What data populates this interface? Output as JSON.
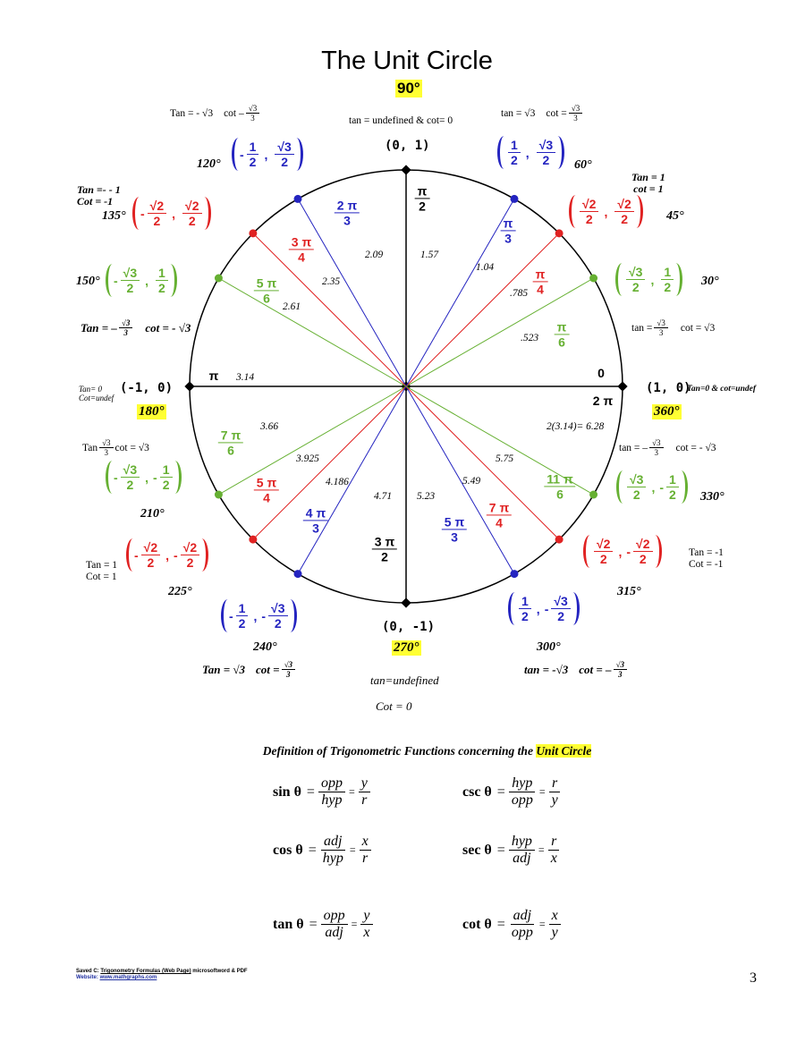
{
  "title": "The Unit Circle",
  "colors": {
    "green": "#66b032",
    "red": "#e02222",
    "blue": "#2424c0",
    "black": "#000000",
    "highlight": "#ffff33"
  },
  "axes": {
    "deg90": "90°",
    "deg180": "180°",
    "deg270": "270°",
    "deg360": "360°",
    "coord_top": "(0, 1)",
    "coord_left": "(-1, 0)",
    "coord_right": "(1, 0)",
    "coord_bottom": "(0, -1)"
  },
  "points": [
    {
      "deg": 30,
      "angle": "30°",
      "color": "green",
      "x": {
        "s": "",
        "n": "√3",
        "d": "2"
      },
      "y": {
        "s": "",
        "n": "1",
        "d": "2"
      }
    },
    {
      "deg": 45,
      "angle": "45°",
      "color": "red",
      "x": {
        "s": "",
        "n": "√2",
        "d": "2"
      },
      "y": {
        "s": "",
        "n": "√2",
        "d": "2"
      }
    },
    {
      "deg": 60,
      "angle": "60°",
      "color": "blue",
      "x": {
        "s": "",
        "n": "1",
        "d": "2"
      },
      "y": {
        "s": "",
        "n": "√3",
        "d": "2"
      }
    },
    {
      "deg": 120,
      "angle": "120°",
      "color": "blue",
      "x": {
        "s": "-",
        "n": "1",
        "d": "2"
      },
      "y": {
        "s": "",
        "n": "√3",
        "d": "2"
      }
    },
    {
      "deg": 135,
      "angle": "135°",
      "color": "red",
      "x": {
        "s": "-",
        "n": "√2",
        "d": "2"
      },
      "y": {
        "s": "",
        "n": "√2",
        "d": "2"
      }
    },
    {
      "deg": 150,
      "angle": "150°",
      "color": "green",
      "x": {
        "s": "-",
        "n": "√3",
        "d": "2"
      },
      "y": {
        "s": "",
        "n": "1",
        "d": "2"
      }
    },
    {
      "deg": 210,
      "angle": "210°",
      "color": "green",
      "x": {
        "s": "-",
        "n": "√3",
        "d": "2"
      },
      "y": {
        "s": "-",
        "n": "1",
        "d": "2"
      }
    },
    {
      "deg": 225,
      "angle": "225°",
      "color": "red",
      "x": {
        "s": "-",
        "n": "√2",
        "d": "2"
      },
      "y": {
        "s": "-",
        "n": "√2",
        "d": "2"
      }
    },
    {
      "deg": 240,
      "angle": "240°",
      "color": "blue",
      "x": {
        "s": "-",
        "n": "1",
        "d": "2"
      },
      "y": {
        "s": "-",
        "n": "√3",
        "d": "2"
      }
    },
    {
      "deg": 300,
      "angle": "300°",
      "color": "blue",
      "x": {
        "s": "",
        "n": "1",
        "d": "2"
      },
      "y": {
        "s": "-",
        "n": "√3",
        "d": "2"
      }
    },
    {
      "deg": 315,
      "angle": "315°",
      "color": "red",
      "x": {
        "s": "",
        "n": "√2",
        "d": "2"
      },
      "y": {
        "s": "-",
        "n": "√2",
        "d": "2"
      }
    },
    {
      "deg": 330,
      "angle": "330°",
      "color": "green",
      "x": {
        "s": "",
        "n": "√3",
        "d": "2"
      },
      "y": {
        "s": "-",
        "n": "1",
        "d": "2"
      }
    }
  ],
  "radians": [
    {
      "n": "π",
      "d": "2",
      "color": "black"
    },
    {
      "n": "π",
      "d": "3",
      "color": "blue"
    },
    {
      "n": "π",
      "d": "4",
      "color": "red"
    },
    {
      "n": "π",
      "d": "6",
      "color": "green"
    },
    {
      "n": "0",
      "d": "",
      "color": "black"
    },
    {
      "n": "2 π",
      "d": "",
      "color": "black"
    },
    {
      "n": "2 π",
      "d": "3",
      "color": "blue"
    },
    {
      "n": "3 π",
      "d": "4",
      "color": "red"
    },
    {
      "n": "5 π",
      "d": "6",
      "color": "green"
    },
    {
      "n": "π",
      "d": "",
      "color": "black"
    },
    {
      "n": "7 π",
      "d": "6",
      "color": "green"
    },
    {
      "n": "5 π",
      "d": "4",
      "color": "red"
    },
    {
      "n": "4 π",
      "d": "3",
      "color": "blue"
    },
    {
      "n": "3 π",
      "d": "2",
      "color": "black"
    },
    {
      "n": "5 π",
      "d": "3",
      "color": "blue"
    },
    {
      "n": "7 π",
      "d": "4",
      "color": "red"
    },
    {
      "n": "11 π",
      "d": "6",
      "color": "green"
    }
  ],
  "decimals": [
    "1.57",
    "1.04",
    ".785",
    ".523",
    "2.09",
    "2.35",
    "2.61",
    "3.14",
    "3.66",
    "3.925",
    "4.186",
    "4.71",
    "5.23",
    "5.49",
    "5.75",
    "2(3.14)= 6.28"
  ],
  "notes": [
    {
      "style": "",
      "parts": [
        "Tan = - √3",
        {
          "gap": 1
        },
        "cot  –",
        {
          "n": "√3",
          "d": "3"
        }
      ]
    },
    {
      "style": "",
      "parts": [
        "tan = undefined  & cot= 0"
      ]
    },
    {
      "style": "",
      "parts": [
        "tan = √3",
        {
          "gap": 1
        },
        "cot =",
        {
          "n": "√3",
          "d": "3"
        }
      ]
    },
    {
      "style": "bi",
      "parts": [
        "Tan = – ",
        {
          "n": "√3",
          "d": "3"
        },
        {
          "gap": 1
        },
        "cot = - √3"
      ]
    },
    {
      "style": "",
      "parts": [
        "tan =",
        {
          "n": "√3",
          "d": "3"
        },
        {
          "gap": 1
        },
        "cot = √3"
      ]
    },
    {
      "style": "",
      "parts": [
        "Tan",
        {
          "n": "√3",
          "d": "3"
        },
        "cot = √3"
      ]
    },
    {
      "style": "",
      "parts": [
        "tan =  –",
        {
          "n": "√3",
          "d": "3"
        },
        {
          "gap": 1
        },
        "cot = - √3"
      ]
    },
    {
      "style": "bi",
      "parts": [
        "Tan = √3",
        {
          "gap": 1
        },
        "cot =",
        {
          "n": "√3",
          "d": "3"
        }
      ]
    },
    {
      "style": "bi",
      "parts": [
        "tan = -√3",
        {
          "gap": 1
        },
        "cot = –",
        {
          "n": "√3",
          "d": "3"
        }
      ]
    },
    {
      "style": "small",
      "parts": [
        "Tan=0 & cot=undef"
      ]
    }
  ],
  "multi_notes": [
    {
      "lines": [
        "Tan =- - 1",
        "Cot = -1"
      ]
    },
    {
      "lines": [
        "Tan = 1",
        "cot = 1"
      ]
    },
    {
      "lines": [
        "Tan= 0",
        "Cot=undef"
      ]
    },
    {
      "lines": [
        "Tan = 1",
        "Cot = 1"
      ]
    },
    {
      "lines": [
        "Tan = -1",
        "Cot = -1"
      ]
    },
    {
      "lines": [
        "tan=undefined"
      ]
    },
    {
      "lines": [
        "Cot = 0"
      ]
    }
  ],
  "definitions": {
    "title_prefix": "Definition of Trigonometric Functions concerning the ",
    "title_highlight": "Unit Circle",
    "rows": [
      {
        "fn": "sin θ",
        "eq1": "=",
        "a": {
          "n": "opp",
          "d": "hyp"
        },
        "eq2": "=",
        "b": {
          "n": "y",
          "d": "r"
        }
      },
      {
        "fn": "csc θ",
        "eq1": "=",
        "a": {
          "n": "hyp",
          "d": "opp"
        },
        "eq2": "=",
        "b": {
          "n": "r",
          "d": "y"
        }
      },
      {
        "fn": "cos θ",
        "eq1": "=",
        "a": {
          "n": "adj",
          "d": "hyp"
        },
        "eq2": "=",
        "b": {
          "n": "x",
          "d": "r"
        }
      },
      {
        "fn": "sec θ",
        "eq1": "=",
        "a": {
          "n": "hyp",
          "d": "adj"
        },
        "eq2": "=",
        "b": {
          "n": "r",
          "d": "x"
        }
      },
      {
        "fn": "tan θ",
        "eq1": "=",
        "a": {
          "n": "opp",
          "d": "adj"
        },
        "eq2": "=",
        "b": {
          "n": "y",
          "d": "x"
        }
      },
      {
        "fn": "cot θ",
        "eq1": "=",
        "a": {
          "n": "adj",
          "d": "opp"
        },
        "eq2": "=",
        "b": {
          "n": "x",
          "d": "y"
        }
      }
    ]
  },
  "footer": {
    "saved_prefix": "Saved C: ",
    "saved_link": "Trigonometry Formulas (Web Page)",
    "saved_suffix": " microsoftword & PDF",
    "website_label": "Website: ",
    "website_link": "www.mathgraphs.com"
  },
  "page_number": "3"
}
